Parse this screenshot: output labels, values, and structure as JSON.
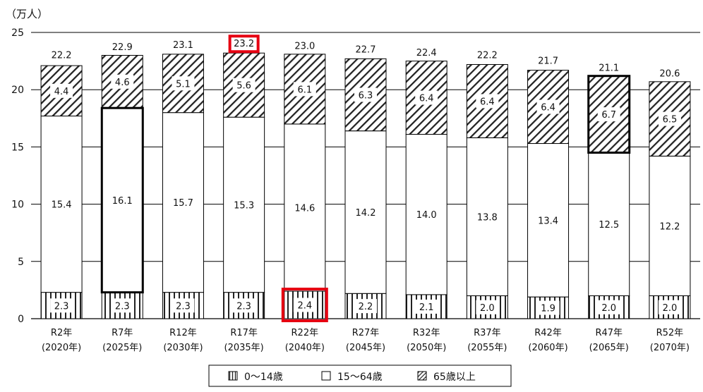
{
  "chart_data": {
    "type": "bar",
    "stacked": true,
    "unit_label": "（万人）",
    "title": "",
    "xlabel": "",
    "ylabel": "",
    "ylim": [
      0,
      25
    ],
    "yticks": [
      0,
      5,
      10,
      15,
      20,
      25
    ],
    "grid": true,
    "legend_position": "bottom",
    "categories": [
      {
        "era": "R2年",
        "year": "(2020年)"
      },
      {
        "era": "R7年",
        "year": "(2025年)"
      },
      {
        "era": "R12年",
        "year": "(2030年)"
      },
      {
        "era": "R17年",
        "year": "(2035年)"
      },
      {
        "era": "R22年",
        "year": "(2040年)"
      },
      {
        "era": "R27年",
        "year": "(2045年)"
      },
      {
        "era": "R32年",
        "year": "(2050年)"
      },
      {
        "era": "R37年",
        "year": "(2055年)"
      },
      {
        "era": "R42年",
        "year": "(2060年)"
      },
      {
        "era": "R47年",
        "year": "(2065年)"
      },
      {
        "era": "R52年",
        "year": "(2070年)"
      }
    ],
    "series": [
      {
        "name": "0～14歳",
        "pattern": "vertical-lines",
        "values": [
          2.3,
          2.3,
          2.3,
          2.3,
          2.4,
          2.2,
          2.1,
          2.0,
          1.9,
          2.0,
          2.0
        ]
      },
      {
        "name": "15～64歳",
        "pattern": "blank",
        "values": [
          15.4,
          16.1,
          15.7,
          15.3,
          14.6,
          14.2,
          14.0,
          13.8,
          13.4,
          12.5,
          12.2
        ]
      },
      {
        "name": "65歳以上",
        "pattern": "diagonal-hatch",
        "values": [
          4.4,
          4.6,
          5.1,
          5.6,
          6.1,
          6.3,
          6.4,
          6.4,
          6.4,
          6.7,
          6.5
        ]
      }
    ],
    "totals": [
      22.2,
      22.9,
      23.1,
      23.2,
      23.0,
      22.7,
      22.4,
      22.2,
      21.7,
      21.1,
      20.6
    ],
    "emphasis": {
      "bold_outline": [
        {
          "category": "R7年",
          "series": "15～64歳"
        },
        {
          "category": "R47年",
          "series": "65歳以上"
        }
      ],
      "red_box": [
        {
          "category": "R17年",
          "label": "total"
        },
        {
          "category": "R22年",
          "label": "0～14歳"
        }
      ]
    },
    "colors": {
      "axis": "#000000",
      "grid": "#000000",
      "highlight": "#e60012",
      "pattern": "#222222",
      "bar_fill": "#ffffff"
    }
  }
}
